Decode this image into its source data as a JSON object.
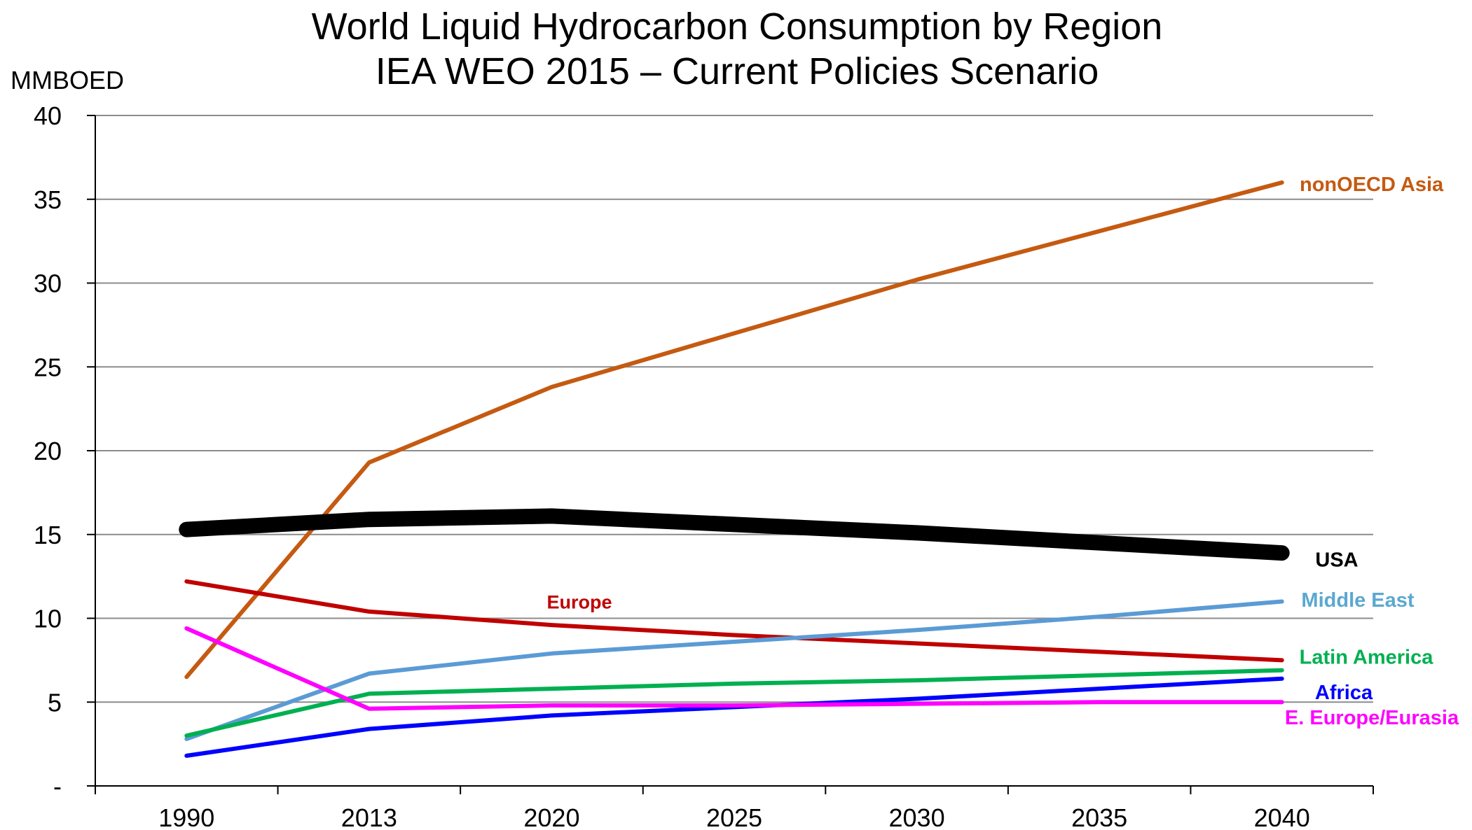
{
  "chart_data": {
    "type": "line",
    "title": "World Liquid Hydrocarbon Consumption by Region",
    "subtitle": "IEA WEO 2015 – Current Policies Scenario",
    "ylabel": "MMBOED",
    "xlabel": "",
    "categories": [
      "1990",
      "2013",
      "2020",
      "2025",
      "2030",
      "2035",
      "2040"
    ],
    "ylim": [
      0,
      40
    ],
    "y_ticks": [
      0,
      5,
      10,
      15,
      20,
      25,
      30,
      35,
      40
    ],
    "y_tick_labels": [
      "-",
      "5",
      "10",
      "15",
      "20",
      "25",
      "30",
      "35",
      "40"
    ],
    "grid": "horizontal",
    "legend": "inline labels at right end of lines",
    "series": [
      {
        "name": "nonOECD Asia",
        "color": "#C55A11",
        "width": "normal",
        "values": [
          6.5,
          19.3,
          23.8,
          27.0,
          30.2,
          33.1,
          36.0
        ]
      },
      {
        "name": "USA",
        "color": "#000000",
        "width": "heavy",
        "values": [
          15.3,
          15.9,
          16.1,
          15.6,
          15.1,
          14.5,
          13.9
        ]
      },
      {
        "name": "Europe",
        "color": "#C00000",
        "width": "normal",
        "values": [
          12.2,
          10.4,
          9.6,
          9.0,
          8.5,
          8.0,
          7.5
        ]
      },
      {
        "name": "Middle East",
        "color": "#5B9BD5",
        "width": "normal",
        "values": [
          2.8,
          6.7,
          7.9,
          8.6,
          9.3,
          10.1,
          11.0
        ]
      },
      {
        "name": "Latin America",
        "color": "#00B050",
        "width": "normal",
        "values": [
          3.0,
          5.5,
          5.8,
          6.1,
          6.3,
          6.6,
          6.9
        ]
      },
      {
        "name": "Africa",
        "color": "#0000FF",
        "width": "normal",
        "values": [
          1.8,
          3.4,
          4.2,
          4.7,
          5.2,
          5.8,
          6.4
        ]
      },
      {
        "name": "E. Europe/Eurasia",
        "color": "#FF00FF",
        "width": "normal",
        "values": [
          9.4,
          4.6,
          4.8,
          4.8,
          4.9,
          5.0,
          5.0
        ]
      }
    ]
  }
}
